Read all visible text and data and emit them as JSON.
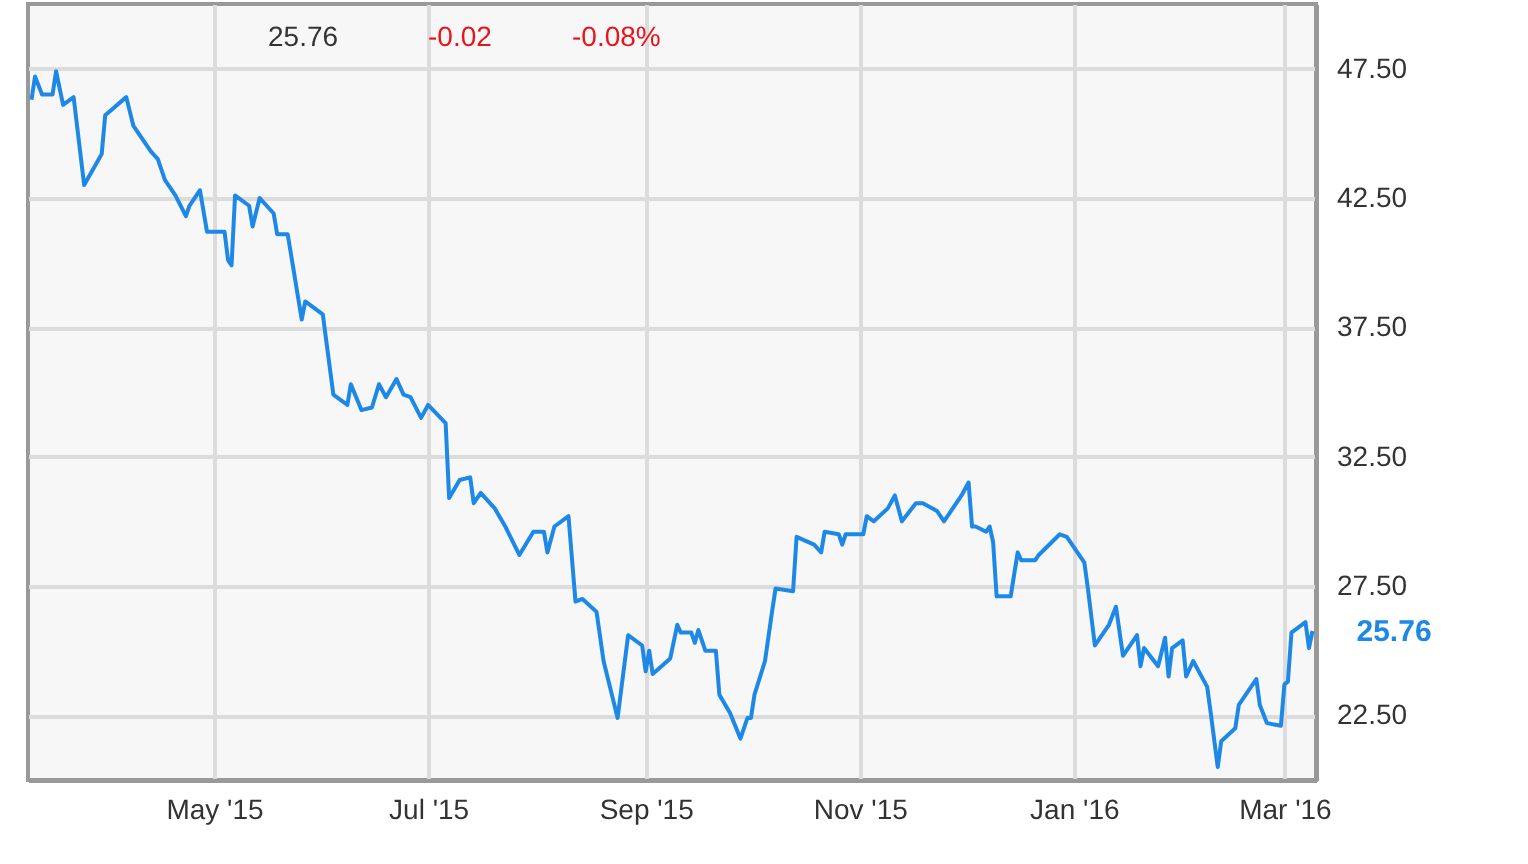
{
  "chart_data": {
    "type": "line",
    "annotations": [
      "25.76",
      "-0.02",
      "-0.08%",
      {
        "text": "25.76",
        "x": "2016-03-09",
        "y": 25.76
      }
    ],
    "x": [
      "2015-03-10",
      "2015-03-11",
      "2015-03-13",
      "2015-03-16",
      "2015-03-17",
      "2015-03-19",
      "2015-03-22",
      "2015-03-25",
      "2015-03-30",
      "2015-03-31",
      "2015-04-06",
      "2015-04-08",
      "2015-04-13",
      "2015-04-15",
      "2015-04-17",
      "2015-04-20",
      "2015-04-23",
      "2015-04-24",
      "2015-04-27",
      "2015-04-29",
      "2015-05-04",
      "2015-05-05",
      "2015-05-06",
      "2015-05-07",
      "2015-05-11",
      "2015-05-12",
      "2015-05-14",
      "2015-05-18",
      "2015-05-19",
      "2015-05-22",
      "2015-05-26",
      "2015-05-27",
      "2015-06-01",
      "2015-06-04",
      "2015-06-08",
      "2015-06-09",
      "2015-06-12",
      "2015-06-15",
      "2015-06-17",
      "2015-06-19",
      "2015-06-22",
      "2015-06-24",
      "2015-06-26",
      "2015-06-29",
      "2015-07-01",
      "2015-07-06",
      "2015-07-07",
      "2015-07-10",
      "2015-07-13",
      "2015-07-14",
      "2015-07-16",
      "2015-07-20",
      "2015-07-23",
      "2015-07-27",
      "2015-07-31",
      "2015-08-03",
      "2015-08-04",
      "2015-08-06",
      "2015-08-10",
      "2015-08-12",
      "2015-08-14",
      "2015-08-18",
      "2015-08-20",
      "2015-08-24",
      "2015-08-27",
      "2015-08-31",
      "2015-09-01",
      "2015-09-02",
      "2015-09-03",
      "2015-09-08",
      "2015-09-10",
      "2015-09-11",
      "2015-09-14",
      "2015-09-15",
      "2015-09-16",
      "2015-09-18",
      "2015-09-21",
      "2015-09-22",
      "2015-09-25",
      "2015-09-28",
      "2015-09-30",
      "2015-10-01",
      "2015-10-02",
      "2015-10-05",
      "2015-10-07",
      "2015-10-08",
      "2015-10-13",
      "2015-10-14",
      "2015-10-19",
      "2015-10-21",
      "2015-10-22",
      "2015-10-26",
      "2015-10-27",
      "2015-10-28",
      "2015-11-02",
      "2015-11-03",
      "2015-11-05",
      "2015-11-09",
      "2015-11-11",
      "2015-11-13",
      "2015-11-17",
      "2015-11-19",
      "2015-11-23",
      "2015-11-25",
      "2015-11-30",
      "2015-12-02",
      "2015-12-03",
      "2015-12-04",
      "2015-12-07",
      "2015-12-08",
      "2015-12-09",
      "2015-12-10",
      "2015-12-14",
      "2015-12-16",
      "2015-12-17",
      "2015-12-21",
      "2015-12-22",
      "2015-12-28",
      "2015-12-30",
      "2016-01-04",
      "2016-01-05",
      "2016-01-07",
      "2016-01-11",
      "2016-01-13",
      "2016-01-15",
      "2016-01-19",
      "2016-01-20",
      "2016-01-21",
      "2016-01-25",
      "2016-01-27",
      "2016-01-28",
      "2016-01-29",
      "2016-02-01",
      "2016-02-02",
      "2016-02-04",
      "2016-02-08",
      "2016-02-09",
      "2016-02-11",
      "2016-02-12",
      "2016-02-16",
      "2016-02-17",
      "2016-02-22",
      "2016-02-23",
      "2016-02-25",
      "2016-02-29",
      "2016-03-01",
      "2016-03-02",
      "2016-03-03",
      "2016-03-07",
      "2016-03-08",
      "2016-03-09"
    ],
    "series": [
      {
        "color": "#1e88e5",
        "values": [
          46.3,
          47.2,
          46.5,
          46.5,
          47.4,
          46.1,
          46.4,
          43.0,
          44.2,
          45.7,
          46.4,
          45.3,
          44.3,
          44.0,
          43.2,
          42.6,
          41.8,
          42.2,
          42.8,
          41.2,
          41.2,
          40.1,
          39.9,
          42.6,
          42.2,
          41.4,
          42.5,
          41.9,
          41.1,
          41.1,
          37.8,
          38.5,
          38.0,
          34.9,
          34.5,
          35.3,
          34.3,
          34.4,
          35.3,
          34.8,
          35.5,
          34.9,
          34.8,
          34.0,
          34.5,
          33.8,
          30.9,
          31.6,
          31.7,
          30.7,
          31.1,
          30.5,
          29.8,
          28.7,
          29.6,
          29.6,
          28.8,
          29.8,
          30.2,
          26.9,
          27.0,
          26.5,
          24.6,
          22.4,
          25.6,
          25.2,
          24.2,
          25.0,
          24.1,
          24.7,
          26.0,
          25.7,
          25.7,
          25.3,
          25.8,
          25.0,
          25.0,
          23.3,
          22.6,
          21.6,
          22.4,
          22.4,
          23.3,
          24.6,
          26.5,
          27.4,
          27.3,
          29.4,
          29.1,
          28.8,
          29.6,
          29.5,
          29.1,
          29.5,
          29.5,
          30.2,
          30.0,
          30.5,
          31.0,
          30.0,
          30.7,
          30.7,
          30.4,
          30.0,
          31.0,
          31.5,
          29.8,
          29.8,
          29.6,
          29.8,
          29.2,
          27.1,
          27.1,
          28.8,
          28.5,
          28.5,
          28.7,
          29.5,
          29.4,
          28.4,
          27.4,
          25.2,
          26.0,
          26.7,
          24.8,
          25.6,
          24.4,
          25.1,
          24.4,
          25.5,
          24.0,
          25.1,
          25.4,
          24.0,
          24.6,
          23.6,
          22.6,
          20.5,
          21.5,
          22.0,
          22.9,
          23.9,
          22.9,
          22.2,
          22.1,
          23.7,
          23.8,
          25.7,
          26.1,
          25.1,
          25.76
        ]
      }
    ],
    "xlim": [
      "2015-03-09",
      "2016-03-10"
    ],
    "xticks": [
      {
        "value": "2015-05-01",
        "label": "May '15"
      },
      {
        "value": "2015-07-01",
        "label": "Jul '15"
      },
      {
        "value": "2015-09-01",
        "label": "Sep '15"
      },
      {
        "value": "2015-11-01",
        "label": "Nov '15"
      },
      {
        "value": "2016-01-01",
        "label": "Jan '16"
      },
      {
        "value": "2016-03-01",
        "label": "Mar '16"
      }
    ],
    "ylim": [
      20,
      50
    ],
    "yticks": [
      {
        "value": 22.5,
        "label": "22.50"
      },
      {
        "value": 27.5,
        "label": "27.50"
      },
      {
        "value": 32.5,
        "label": "32.50"
      },
      {
        "value": 37.5,
        "label": "37.50"
      },
      {
        "value": 42.5,
        "label": "42.50"
      },
      {
        "value": 47.5,
        "label": "47.50"
      }
    ],
    "grid": true,
    "line_style": "solid",
    "marker": "none"
  }
}
